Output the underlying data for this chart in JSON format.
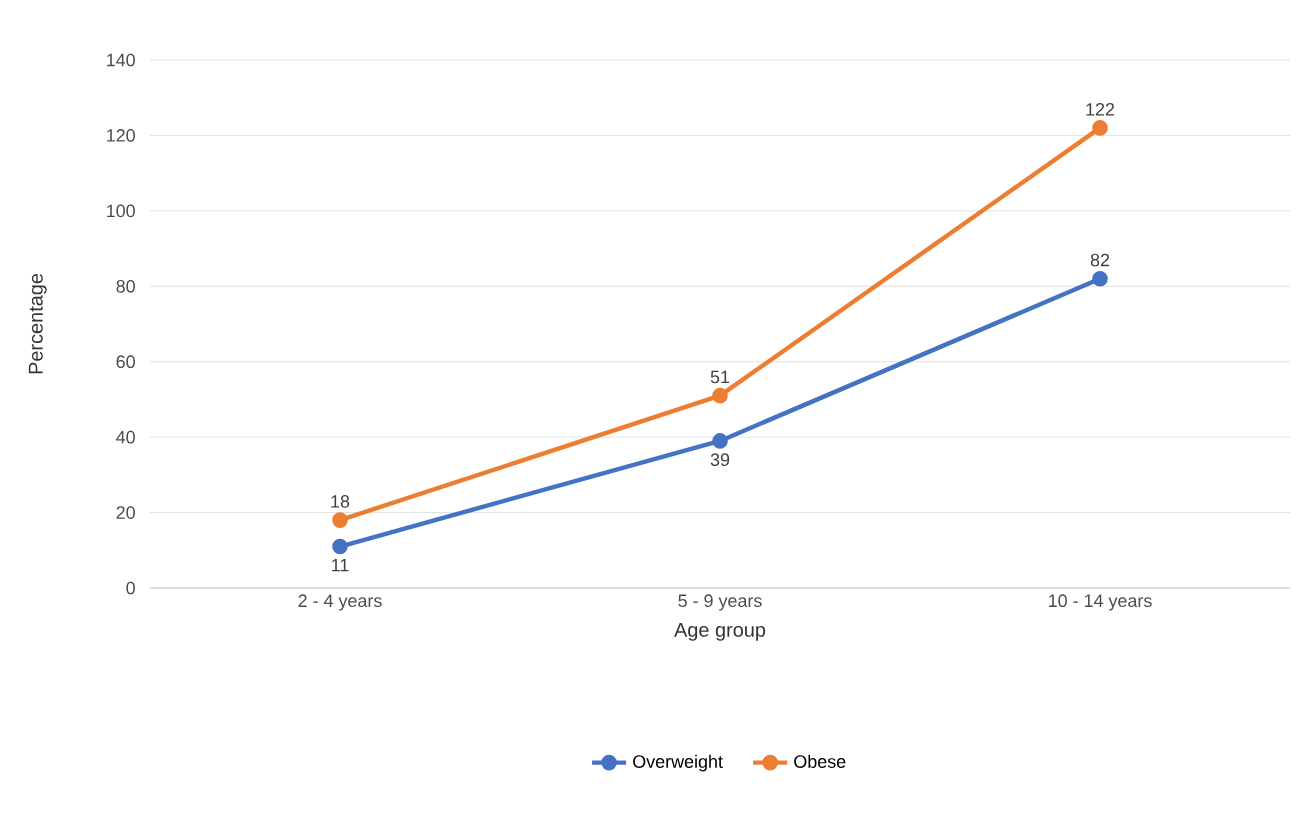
{
  "chart_data": {
    "type": "line",
    "xlabel": "Age group",
    "ylabel": "Percentage",
    "categories": [
      "2 - 4 years",
      "5 - 9 years",
      "10 - 14 years"
    ],
    "series": [
      {
        "name": "Overweight",
        "color": "#4472c4",
        "values": [
          11,
          39,
          82
        ]
      },
      {
        "name": "Obese",
        "color": "#ed7d31",
        "values": [
          18,
          51,
          122
        ]
      }
    ],
    "ylim": [
      0,
      140
    ],
    "yticks": [
      0,
      20,
      40,
      60,
      80,
      100,
      120,
      140
    ],
    "grid": "y",
    "legend": "bottom",
    "marker": "circle",
    "line_style": "solid",
    "data_labels": true
  }
}
